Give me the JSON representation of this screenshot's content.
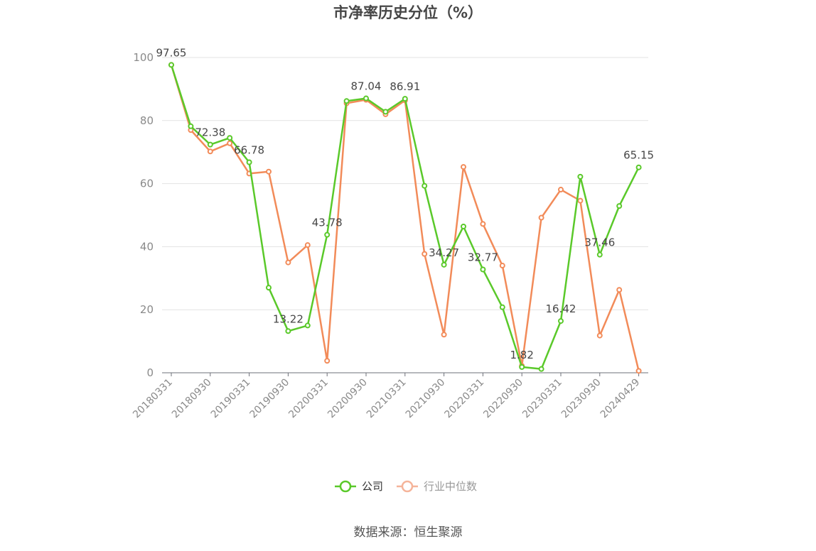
{
  "chart_data": {
    "type": "line",
    "title": "市净率历史分位（%）",
    "ylim": [
      0,
      100
    ],
    "yticks": [
      0,
      20,
      40,
      60,
      80,
      100
    ],
    "grid": true,
    "legend_position": "bottom-center",
    "x_tick_labels": [
      "20180331",
      "20180930",
      "20190331",
      "20190930",
      "20200331",
      "20200930",
      "20210331",
      "20210930",
      "20220331",
      "20220930",
      "20230331",
      "20230930",
      "20240429"
    ],
    "series": [
      {
        "name": "公司",
        "color": "#5ac92a",
        "values": [
          97.65,
          78.2,
          72.38,
          74.5,
          66.78,
          27.0,
          13.22,
          15.0,
          43.78,
          86.2,
          87.04,
          82.8,
          86.91,
          59.3,
          34.27,
          46.4,
          32.77,
          20.8,
          1.82,
          1.2,
          16.42,
          62.2,
          37.46,
          52.9,
          65.15
        ]
      },
      {
        "name": "行业中位数",
        "color": "#f28b59",
        "values": [
          97.65,
          77.0,
          70.2,
          72.8,
          63.2,
          63.8,
          35.0,
          40.5,
          3.8,
          85.5,
          86.6,
          82.0,
          86.4,
          37.7,
          12.1,
          65.3,
          47.2,
          34.0,
          2.2,
          49.2,
          58.1,
          54.6,
          11.8,
          26.3,
          0.6
        ]
      }
    ],
    "data_labels": [
      {
        "index": 0,
        "text": "97.65"
      },
      {
        "index": 2,
        "text": "72.38"
      },
      {
        "index": 4,
        "text": "66.78"
      },
      {
        "index": 6,
        "text": "13.22"
      },
      {
        "index": 8,
        "text": "43.78"
      },
      {
        "index": 10,
        "text": "87.04"
      },
      {
        "index": 12,
        "text": "86.91"
      },
      {
        "index": 14,
        "text": "34.27"
      },
      {
        "index": 16,
        "text": "32.77"
      },
      {
        "index": 18,
        "text": "1.82"
      },
      {
        "index": 20,
        "text": "16.42"
      },
      {
        "index": 22,
        "text": "37.46"
      },
      {
        "index": 24,
        "text": "65.15"
      }
    ]
  },
  "source_label": "数据来源：恒生聚源"
}
